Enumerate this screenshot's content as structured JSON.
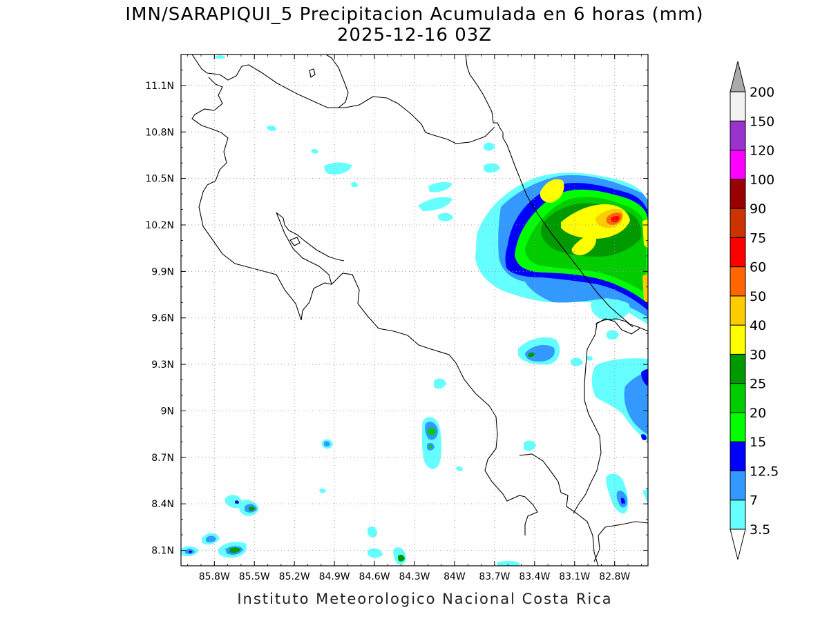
{
  "title_line1": "IMN/SARAPIQUI_5 Precipitacion Acumulada en 6 horas (mm)",
  "title_line2": "2025-12-16 03Z",
  "credit": "Instituto Meteorologico Nacional Costa Rica",
  "map": {
    "lon_range": [
      -86.05,
      -82.55
    ],
    "lat_range": [
      8.0,
      11.3
    ],
    "lon_ticks": [
      "85.8W",
      "85.5W",
      "85.2W",
      "84.9W",
      "84.6W",
      "84.3W",
      "84W",
      "83.7W",
      "83.4W",
      "83.1W",
      "82.8W"
    ],
    "lon_tick_values": [
      -85.8,
      -85.5,
      -85.2,
      -84.9,
      -84.6,
      -84.3,
      -84.0,
      -83.7,
      -83.4,
      -83.1,
      -82.8
    ],
    "lat_ticks": [
      "8.1N",
      "8.4N",
      "8.7N",
      "9N",
      "9.3N",
      "9.6N",
      "9.9N",
      "10.2N",
      "10.5N",
      "10.8N",
      "11.1N"
    ],
    "lat_tick_values": [
      8.1,
      8.4,
      8.7,
      9.0,
      9.3,
      9.6,
      9.9,
      10.2,
      10.5,
      10.8,
      11.1
    ]
  },
  "colorbar": {
    "labels": [
      "3.5",
      "7",
      "12.5",
      "15",
      "20",
      "25",
      "30",
      "40",
      "50",
      "60",
      "75",
      "90",
      "100",
      "120",
      "150",
      "200"
    ],
    "colors": [
      "#66ffff",
      "#3399ff",
      "#0000ff",
      "#00ff00",
      "#00cc00",
      "#009900",
      "#ffff00",
      "#ffcc00",
      "#ff6600",
      "#ff0000",
      "#cc3300",
      "#990000",
      "#ff00ff",
      "#9933cc",
      "#f2f2f2"
    ],
    "under_color": "#ffffff",
    "over_color": "#aaaaaa"
  }
}
